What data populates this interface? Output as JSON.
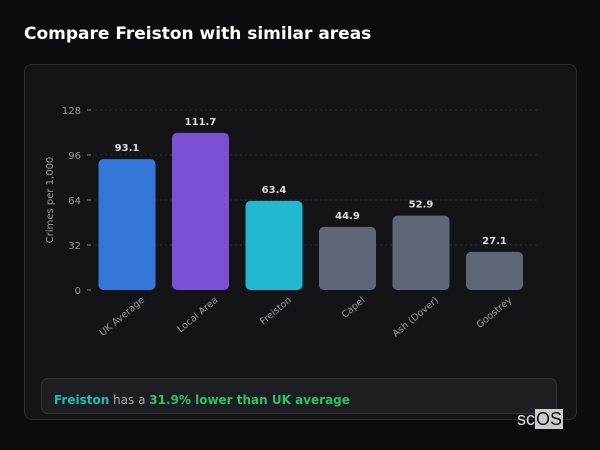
{
  "title": "Compare Freiston with similar areas",
  "chart_data": {
    "type": "bar",
    "ylabel": "Crimes per 1,000",
    "ylim": [
      0,
      128
    ],
    "yticks": [
      0,
      32,
      64,
      96,
      128
    ],
    "grid": true,
    "categories": [
      "UK Average",
      "Local Area",
      "Freiston",
      "Capel",
      "Ash (Dover)",
      "Goostrey"
    ],
    "values": [
      93.1,
      111.7,
      63.4,
      44.9,
      52.9,
      27.1
    ],
    "value_labels": [
      "93.1",
      "111.7",
      "63.4",
      "44.9",
      "52.9",
      "27.1"
    ],
    "colors": [
      "#3577d9",
      "#7a50d4",
      "#22b8cf",
      "#5e6677",
      "#5e6677",
      "#5e6677"
    ]
  },
  "summary": {
    "place": "Freiston",
    "middle": " has a ",
    "highlight": "31.9% lower than UK average"
  },
  "logo": {
    "text_a": "sc",
    "text_b": "OS"
  }
}
